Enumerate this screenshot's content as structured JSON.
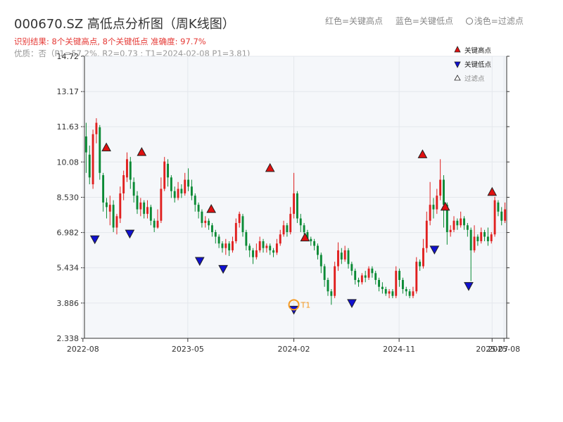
{
  "title": "000670.SZ 高低点分析图（周K线图）",
  "legend_header": {
    "high": "红色=关键高点",
    "low": "蓝色=关键低点",
    "filtered": "浅色=过滤点"
  },
  "result_text": "识别结果: 8个关键高点, 8个关键低点  准确度: 97.7%",
  "quality_text": "优质：否（P1=57.2%, R2=0.73 ; T1=2024-02-08 P1=3.81)",
  "colors": {
    "up": "#e0201f",
    "down": "#0a8a35",
    "high": "#e01010",
    "low": "#1010d0",
    "t1": "#f59a23"
  },
  "chart_data": {
    "type": "candlestick",
    "y_ticks": [
      "14.72",
      "13.17",
      "11.63",
      "10.08",
      "8.530",
      "6.982",
      "5.434",
      "3.886",
      "2.338"
    ],
    "ylim": [
      2.338,
      14.72
    ],
    "x_ticks": [
      {
        "label": "2022-08",
        "date": "2022-08"
      },
      {
        "label": "2023-05",
        "date": "2023-05"
      },
      {
        "label": "2024-02",
        "date": "2024-02"
      },
      {
        "label": "2024-11",
        "date": "2024-11"
      },
      {
        "label": "2025-07",
        "date": "2025-07"
      },
      {
        "label": "2025-08",
        "date": "2025-08"
      }
    ],
    "x_range": [
      "2022-08-05",
      "2025-08-08"
    ],
    "legend": [
      {
        "label": "关键高点",
        "marker": "triangle-up"
      },
      {
        "label": "关键低点",
        "marker": "triangle-down"
      },
      {
        "label": "过滤点",
        "marker": "triangle-outline"
      }
    ],
    "highs": [
      {
        "date": "2022-10",
        "value": 10.5
      },
      {
        "date": "2023-01",
        "value": 10.3
      },
      {
        "date": "2023-07",
        "value": 7.8
      },
      {
        "date": "2023-12",
        "value": 9.6
      },
      {
        "date": "2024-03",
        "value": 6.55
      },
      {
        "date": "2025-01",
        "value": 10.2
      },
      {
        "date": "2025-03",
        "value": 7.9
      },
      {
        "date": "2025-07",
        "value": 8.55
      }
    ],
    "lows": [
      {
        "date": "2022-09",
        "value": 6.9
      },
      {
        "date": "2022-12",
        "value": 7.15
      },
      {
        "date": "2023-06",
        "value": 5.95
      },
      {
        "date": "2023-08",
        "value": 5.6
      },
      {
        "date": "2024-02",
        "value": 3.81
      },
      {
        "date": "2024-07",
        "value": 4.1
      },
      {
        "date": "2025-02",
        "value": 6.45
      },
      {
        "date": "2025-05",
        "value": 4.85
      }
    ],
    "t1": {
      "label": "T1",
      "date": "2024-02",
      "value": 3.81
    },
    "candles": [
      [
        11.2,
        10.5,
        11.8,
        9.6
      ],
      [
        10.4,
        9.4,
        10.8,
        9.1
      ],
      [
        9.1,
        11.3,
        11.5,
        8.9
      ],
      [
        11.3,
        11.8,
        12.0,
        10.9
      ],
      [
        11.6,
        9.6,
        11.7,
        9.3
      ],
      [
        9.5,
        8.3,
        9.6,
        7.9
      ],
      [
        8.3,
        8.1,
        8.5,
        7.6
      ],
      [
        7.9,
        8.2,
        8.6,
        7.3
      ],
      [
        8.2,
        7.2,
        8.4,
        7.0
      ],
      [
        7.2,
        7.7,
        7.8,
        6.9
      ],
      [
        7.6,
        8.7,
        9.0,
        7.4
      ],
      [
        8.7,
        9.5,
        9.7,
        8.4
      ],
      [
        9.4,
        10.2,
        10.5,
        9.2
      ],
      [
        10.1,
        9.3,
        10.3,
        8.9
      ],
      [
        9.2,
        8.6,
        9.4,
        8.3
      ],
      [
        8.6,
        8.0,
        8.8,
        7.8
      ],
      [
        8.0,
        8.3,
        8.5,
        7.7
      ],
      [
        8.3,
        7.8,
        8.4,
        7.6
      ],
      [
        7.8,
        8.1,
        8.4,
        7.6
      ],
      [
        8.1,
        7.5,
        8.2,
        7.3
      ],
      [
        7.5,
        7.2,
        7.6,
        7.0
      ],
      [
        7.2,
        7.5,
        8.0,
        7.15
      ],
      [
        7.5,
        8.9,
        9.4,
        7.4
      ],
      [
        8.9,
        10.1,
        10.3,
        8.8
      ],
      [
        10.0,
        9.4,
        10.2,
        9.0
      ],
      [
        9.4,
        8.8,
        9.5,
        8.5
      ],
      [
        8.8,
        8.5,
        9.0,
        8.3
      ],
      [
        8.5,
        8.9,
        9.2,
        8.4
      ],
      [
        8.9,
        8.7,
        9.1,
        8.5
      ],
      [
        8.7,
        9.3,
        9.6,
        8.6
      ],
      [
        9.3,
        9.0,
        9.8,
        8.8
      ],
      [
        9.0,
        8.6,
        9.3,
        8.4
      ],
      [
        8.6,
        8.2,
        8.7,
        7.9
      ],
      [
        8.2,
        7.9,
        8.3,
        7.6
      ],
      [
        7.9,
        7.4,
        8.0,
        7.2
      ],
      [
        7.4,
        7.5,
        7.7,
        7.2
      ],
      [
        7.5,
        7.3,
        7.6,
        7.1
      ],
      [
        7.3,
        7.0,
        7.4,
        6.8
      ],
      [
        7.0,
        6.8,
        7.1,
        6.5
      ],
      [
        6.8,
        6.5,
        6.9,
        6.3
      ],
      [
        6.5,
        6.3,
        6.6,
        6.1
      ],
      [
        6.3,
        6.5,
        6.7,
        6.0
      ],
      [
        6.5,
        6.2,
        6.6,
        5.95
      ],
      [
        6.2,
        6.6,
        6.8,
        6.1
      ],
      [
        6.6,
        7.4,
        7.6,
        6.5
      ],
      [
        7.4,
        7.8,
        7.9,
        7.2
      ],
      [
        7.7,
        7.0,
        7.8,
        6.8
      ],
      [
        7.0,
        6.4,
        7.1,
        6.2
      ],
      [
        6.4,
        6.2,
        6.5,
        5.9
      ],
      [
        6.2,
        5.9,
        6.3,
        5.6
      ],
      [
        5.9,
        6.2,
        6.5,
        5.8
      ],
      [
        6.2,
        6.6,
        6.8,
        6.1
      ],
      [
        6.6,
        6.3,
        6.7,
        6.1
      ],
      [
        6.3,
        6.4,
        6.5,
        6.1
      ],
      [
        6.4,
        6.2,
        6.5,
        6.0
      ],
      [
        6.2,
        6.1,
        6.3,
        5.9
      ],
      [
        6.1,
        6.5,
        6.7,
        6.0
      ],
      [
        6.5,
        6.9,
        7.1,
        6.4
      ],
      [
        6.9,
        7.3,
        7.5,
        6.8
      ],
      [
        7.3,
        7.0,
        7.4,
        6.8
      ],
      [
        7.0,
        7.8,
        8.1,
        6.9
      ],
      [
        7.8,
        8.7,
        9.6,
        7.6
      ],
      [
        8.7,
        7.6,
        8.8,
        7.4
      ],
      [
        7.6,
        7.3,
        7.8,
        7.0
      ],
      [
        7.3,
        7.0,
        7.4,
        6.9
      ],
      [
        7.0,
        6.7,
        7.1,
        6.6
      ],
      [
        6.7,
        6.6,
        6.8,
        6.4
      ],
      [
        6.6,
        6.4,
        6.7,
        6.2
      ],
      [
        6.4,
        6.0,
        6.5,
        5.8
      ],
      [
        6.0,
        5.5,
        6.1,
        5.2
      ],
      [
        5.5,
        4.9,
        5.6,
        4.6
      ],
      [
        4.9,
        4.4,
        5.0,
        4.2
      ],
      [
        4.4,
        4.2,
        4.5,
        3.81
      ],
      [
        4.2,
        5.5,
        5.7,
        4.1
      ],
      [
        5.5,
        6.2,
        6.55,
        5.3
      ],
      [
        6.1,
        5.8,
        6.3,
        5.6
      ],
      [
        5.8,
        6.2,
        6.4,
        5.7
      ],
      [
        6.2,
        5.6,
        6.3,
        5.4
      ],
      [
        5.6,
        5.3,
        5.7,
        5.1
      ],
      [
        5.3,
        4.9,
        5.4,
        4.7
      ],
      [
        4.9,
        4.8,
        5.0,
        4.6
      ],
      [
        4.8,
        5.1,
        5.2,
        4.7
      ],
      [
        5.1,
        5.0,
        5.3,
        4.8
      ],
      [
        5.0,
        5.4,
        5.5,
        4.9
      ],
      [
        5.4,
        5.2,
        5.5,
        5.0
      ],
      [
        5.2,
        4.9,
        5.3,
        4.7
      ],
      [
        4.9,
        4.6,
        5.0,
        4.4
      ],
      [
        4.6,
        4.5,
        4.8,
        4.3
      ],
      [
        4.5,
        4.3,
        4.6,
        4.2
      ],
      [
        4.3,
        4.4,
        4.5,
        4.1
      ],
      [
        4.4,
        4.2,
        4.5,
        4.1
      ],
      [
        4.2,
        5.3,
        5.5,
        4.1
      ],
      [
        5.3,
        4.9,
        5.4,
        4.6
      ],
      [
        4.9,
        4.5,
        5.0,
        4.3
      ],
      [
        4.5,
        4.4,
        4.6,
        4.2
      ],
      [
        4.4,
        4.2,
        4.5,
        4.1
      ],
      [
        4.2,
        4.4,
        4.6,
        4.1
      ],
      [
        4.4,
        5.7,
        5.9,
        4.3
      ],
      [
        5.7,
        5.5,
        5.8,
        5.3
      ],
      [
        5.5,
        6.3,
        6.7,
        5.4
      ],
      [
        6.3,
        7.5,
        7.9,
        6.1
      ],
      [
        7.5,
        8.2,
        9.2,
        7.3
      ],
      [
        8.2,
        8.0,
        8.5,
        7.6
      ],
      [
        8.0,
        8.6,
        8.9,
        7.8
      ],
      [
        8.6,
        9.3,
        10.2,
        8.4
      ],
      [
        9.3,
        8.2,
        9.5,
        7.2
      ],
      [
        8.2,
        7.0,
        8.3,
        6.45
      ],
      [
        7.0,
        7.1,
        7.3,
        6.8
      ],
      [
        7.1,
        7.5,
        7.7,
        7.0
      ],
      [
        7.5,
        7.3,
        7.6,
        7.1
      ],
      [
        7.3,
        7.6,
        7.9,
        7.2
      ],
      [
        7.6,
        7.3,
        7.7,
        7.1
      ],
      [
        7.3,
        7.1,
        7.4,
        6.8
      ],
      [
        7.1,
        6.2,
        7.2,
        4.85
      ],
      [
        6.2,
        6.8,
        7.3,
        6.1
      ],
      [
        6.8,
        6.6,
        6.9,
        6.4
      ],
      [
        6.6,
        7.0,
        7.2,
        6.5
      ],
      [
        7.0,
        6.8,
        7.1,
        6.6
      ],
      [
        6.8,
        6.6,
        7.2,
        6.4
      ],
      [
        6.6,
        6.9,
        7.0,
        6.5
      ],
      [
        6.9,
        8.4,
        8.55,
        6.8
      ],
      [
        8.3,
        7.9,
        8.4,
        7.7
      ],
      [
        7.9,
        7.5,
        8.1,
        7.3
      ],
      [
        7.5,
        8.0,
        8.3,
        7.4
      ]
    ]
  }
}
